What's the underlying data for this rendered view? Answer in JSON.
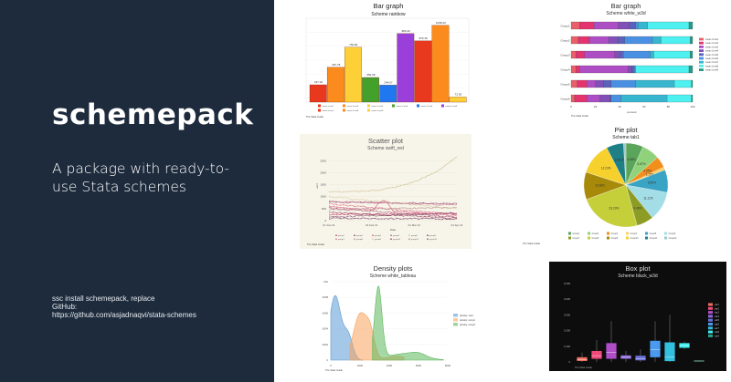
{
  "left": {
    "brand": "schemepack",
    "tagline": "A package with ready-to-use Stata schemes",
    "install": "ssc install schemepack, replace",
    "github_label": "GitHub:",
    "github_url": "https://github.com/asjadnaqvi/stata-schemes",
    "background": "#1d2b3c"
  },
  "credit": "The Stata Guide",
  "chart_data": [
    {
      "id": "bar",
      "type": "bar",
      "title": "Bar graph",
      "subtitle": "Scheme rainbow",
      "categories": [
        "mean of var1",
        "mean of var2",
        "mean of var3",
        "mean of var4",
        "mean of var5",
        "mean of var6",
        "mean of var7",
        "mean of var8",
        "mean of var9"
      ],
      "values": [
        247.94,
        497.78,
        784.83,
        352.18,
        244.07,
        980.4,
        876.36,
        1098.2,
        72.55
      ],
      "value_labels": [
        "247.94",
        "497.78",
        "784.83",
        "352.18",
        "244.07",
        "980.40",
        "876.36",
        "1098.20",
        "72.55"
      ],
      "colors": [
        "#e8381e",
        "#fb8b1c",
        "#fcd036",
        "#43a02b",
        "#1f78f0",
        "#9b3fdb",
        "#e8381e",
        "#fb8b1c",
        "#fcd036"
      ],
      "ylim": [
        0,
        1200
      ],
      "legend": "bottom"
    },
    {
      "id": "stacked",
      "type": "bar",
      "orientation": "horizontal-stacked-percent",
      "title": "Bar graph",
      "subtitle": "Scheme white_w3d",
      "categories": [
        "Group1",
        "Group2",
        "Group3",
        "Group4",
        "Group5",
        "Group6"
      ],
      "series": [
        {
          "name": "mean of var1",
          "values": [
            7,
            6,
            4,
            4,
            5,
            3
          ]
        },
        {
          "name": "mean of var2",
          "values": [
            12,
            9,
            7,
            3,
            8,
            10
          ]
        },
        {
          "name": "mean of var3",
          "values": [
            20,
            16,
            25,
            40,
            7,
            11
          ]
        },
        {
          "name": "mean of var4",
          "values": [
            9,
            8,
            4,
            3,
            7,
            8
          ]
        },
        {
          "name": "mean of var5",
          "values": [
            5,
            5,
            3,
            2,
            6,
            1
          ]
        },
        {
          "name": "mean of var6",
          "values": [
            2,
            23,
            22,
            1,
            20,
            8
          ]
        },
        {
          "name": "mean of var7",
          "values": [
            8,
            7,
            3,
            0,
            32,
            38
          ]
        },
        {
          "name": "mean of var8",
          "values": [
            34,
            24,
            30,
            44,
            14,
            20
          ]
        },
        {
          "name": "mean of var9",
          "values": [
            3,
            2,
            2,
            3,
            1,
            1
          ]
        }
      ],
      "colors": [
        "#e9606a",
        "#e3346f",
        "#ad4ec4",
        "#8050b8",
        "#5b62bb",
        "#4a90e2",
        "#38b6cf",
        "#4ef0f0",
        "#2a9a82"
      ],
      "xlabel": "percent",
      "xticks": [
        "0",
        "20",
        "40",
        "60",
        "80",
        "100"
      ],
      "legend": "right"
    },
    {
      "id": "scatter",
      "type": "scatter",
      "title": "Scatter plot",
      "subtitle": "Scheme swift_red",
      "xlabel": "Date",
      "ylabel": "var3",
      "xticks": [
        "01 Jan 21",
        "01 Feb 21",
        "01 Mar 21",
        "01 Apr 21"
      ],
      "yticks": [
        "0",
        "500",
        "1000",
        "1500",
        "2000",
        "2500"
      ],
      "legend_labels": [
        "group1",
        "group2",
        "group3",
        "group4",
        "group5",
        "group6",
        "group7",
        "group8",
        "group9",
        "group10",
        "group11",
        "group12"
      ],
      "background": "#f7f5ea"
    },
    {
      "id": "pie",
      "type": "pie",
      "title": "Pie plot",
      "subtitle": "Scheme tab1",
      "slices": [
        {
          "label": "Group1",
          "value": 6.58,
          "color": "#5aa55a",
          "text": "6.58%"
        },
        {
          "label": "Group2",
          "value": 6.67,
          "color": "#8fd27a",
          "text": "6.67%"
        },
        {
          "label": "Group3",
          "value": 4.35,
          "color": "#f28e1c",
          "text": "4.35%"
        },
        {
          "label": "Group4",
          "value": 1.15,
          "color": "#f6d06a",
          "text": "1.15%"
        },
        {
          "label": "Group5",
          "value": 8.59,
          "color": "#3aa4c4",
          "text": "8.59%"
        },
        {
          "label": "Group6",
          "value": 11.11,
          "color": "#a3dde6",
          "text": "11.11%"
        },
        {
          "label": "Group7",
          "value": 6.46,
          "color": "#8c9c25",
          "text": "6.46%"
        },
        {
          "label": "Group8",
          "value": 23.23,
          "color": "#c4cf3a",
          "text": "23.23%"
        },
        {
          "label": "Group9",
          "value": 10.38,
          "color": "#a88a0a",
          "text": "10.38%"
        },
        {
          "label": "Group10",
          "value": 12.23,
          "color": "#f6d12e",
          "text": "12.23%"
        },
        {
          "label": "Group11",
          "value": 6.5,
          "color": "#1e7f86",
          "text": "6.50%"
        },
        {
          "label": "Group12",
          "value": 0.9,
          "color": "#a0c8c8",
          "text": ""
        }
      ]
    },
    {
      "id": "density",
      "type": "area",
      "title": "Density plots",
      "subtitle": "Scheme white_tableau",
      "xticks": [
        "0",
        "2000",
        "4000",
        "6000",
        "8000"
      ],
      "yticks": [
        "0",
        ".0002",
        ".0004",
        ".0006",
        ".0008",
        ".001"
      ],
      "series": [
        {
          "name": "density: var3",
          "color": "#5b9bd5"
        },
        {
          "name": "density: temp1",
          "color": "#f7a35c"
        },
        {
          "name": "density: temp2",
          "color": "#5cb85c"
        }
      ],
      "legend": "right"
    },
    {
      "id": "box",
      "type": "box",
      "title": "Box plot",
      "subtitle": "Scheme black_w3d",
      "yticks": [
        "0",
        "1,000",
        "2,000",
        "3,000",
        "4,000",
        "5,000"
      ],
      "ylim": [
        0,
        5000
      ],
      "series": [
        {
          "name": "var1",
          "q1": 60,
          "median": 150,
          "q3": 300,
          "lo": 0,
          "hi": 600,
          "color": "#f07060"
        },
        {
          "name": "var2",
          "q1": 200,
          "median": 400,
          "q3": 700,
          "lo": 0,
          "hi": 1400,
          "color": "#f04a7a"
        },
        {
          "name": "var3",
          "q1": 200,
          "median": 600,
          "q3": 1200,
          "lo": 0,
          "hi": 2600,
          "color": "#b04ec8"
        },
        {
          "name": "var4",
          "q1": 200,
          "median": 300,
          "q3": 420,
          "lo": 0,
          "hi": 700,
          "color": "#8d6ad8"
        },
        {
          "name": "var5",
          "q1": 100,
          "median": 200,
          "q3": 400,
          "lo": 0,
          "hi": 800,
          "color": "#6b70d8"
        },
        {
          "name": "var6",
          "q1": 300,
          "median": 800,
          "q3": 1350,
          "lo": 0,
          "hi": 2600,
          "color": "#4a9af0"
        },
        {
          "name": "var7",
          "q1": 50,
          "median": 300,
          "q3": 1250,
          "lo": 0,
          "hi": 3000,
          "color": "#33c0e0"
        },
        {
          "name": "var8",
          "q1": 900,
          "median": 1050,
          "q3": 1200,
          "lo": 800,
          "hi": 1300,
          "color": "#40f0f0"
        },
        {
          "name": "var9",
          "q1": 50,
          "median": 60,
          "q3": 80,
          "lo": 40,
          "hi": 100,
          "color": "#2aa58a"
        }
      ],
      "background": "#0d0d0d"
    }
  ]
}
